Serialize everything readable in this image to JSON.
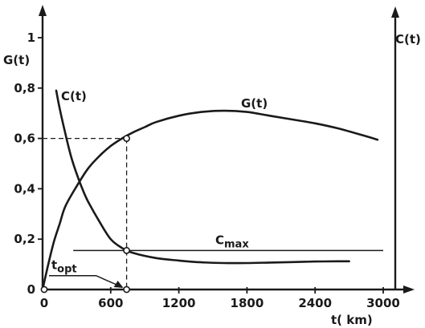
{
  "chart_data": {
    "type": "line",
    "title": "",
    "xlabel": "t( km)",
    "ylabel_left": "G(t)",
    "ylabel_right": "C(t)",
    "xlim": [
      0,
      3000
    ],
    "ylim": [
      0,
      1
    ],
    "x_ticks": [
      "0",
      "600",
      "1200",
      "1800",
      "2400",
      "3000"
    ],
    "y_ticks": [
      "0",
      "0,2",
      "0,4",
      "0,6",
      "0,8",
      "1"
    ],
    "grid": false,
    "series": [
      {
        "name": "G(t)",
        "x": [
          0,
          50,
          100,
          150,
          200,
          300,
          400,
          500,
          600,
          700,
          800,
          900,
          1000,
          1200,
          1400,
          1600,
          1800,
          2000,
          2200,
          2400,
          2600,
          2800,
          2950
        ],
        "y": [
          0.0,
          0.1,
          0.19,
          0.26,
          0.33,
          0.41,
          0.48,
          0.53,
          0.57,
          0.6,
          0.625,
          0.645,
          0.665,
          0.69,
          0.705,
          0.71,
          0.705,
          0.69,
          0.675,
          0.66,
          0.64,
          0.615,
          0.595
        ]
      },
      {
        "name": "C(t)",
        "x": [
          120,
          150,
          200,
          250,
          300,
          350,
          400,
          500,
          600,
          700,
          800,
          1000,
          1200,
          1400,
          1600,
          1800,
          2000,
          2200,
          2400,
          2600,
          2700
        ],
        "y": [
          0.79,
          0.72,
          0.62,
          0.53,
          0.46,
          0.4,
          0.35,
          0.27,
          0.2,
          0.165,
          0.145,
          0.125,
          0.115,
          0.108,
          0.105,
          0.105,
          0.107,
          0.109,
          0.111,
          0.112,
          0.112
        ]
      }
    ],
    "annotations": {
      "cmax": {
        "text": "Cmax",
        "base": "C",
        "sub": "max",
        "x": [
          270,
          3000
        ],
        "y": 0.155
      },
      "topt": {
        "text": "topt",
        "base": "t",
        "sub": "opt",
        "x": 740
      },
      "optimum_point": {
        "x": 740,
        "y": 0.6
      },
      "c_at_optimum": {
        "x": 740,
        "y": 0.155
      }
    }
  }
}
